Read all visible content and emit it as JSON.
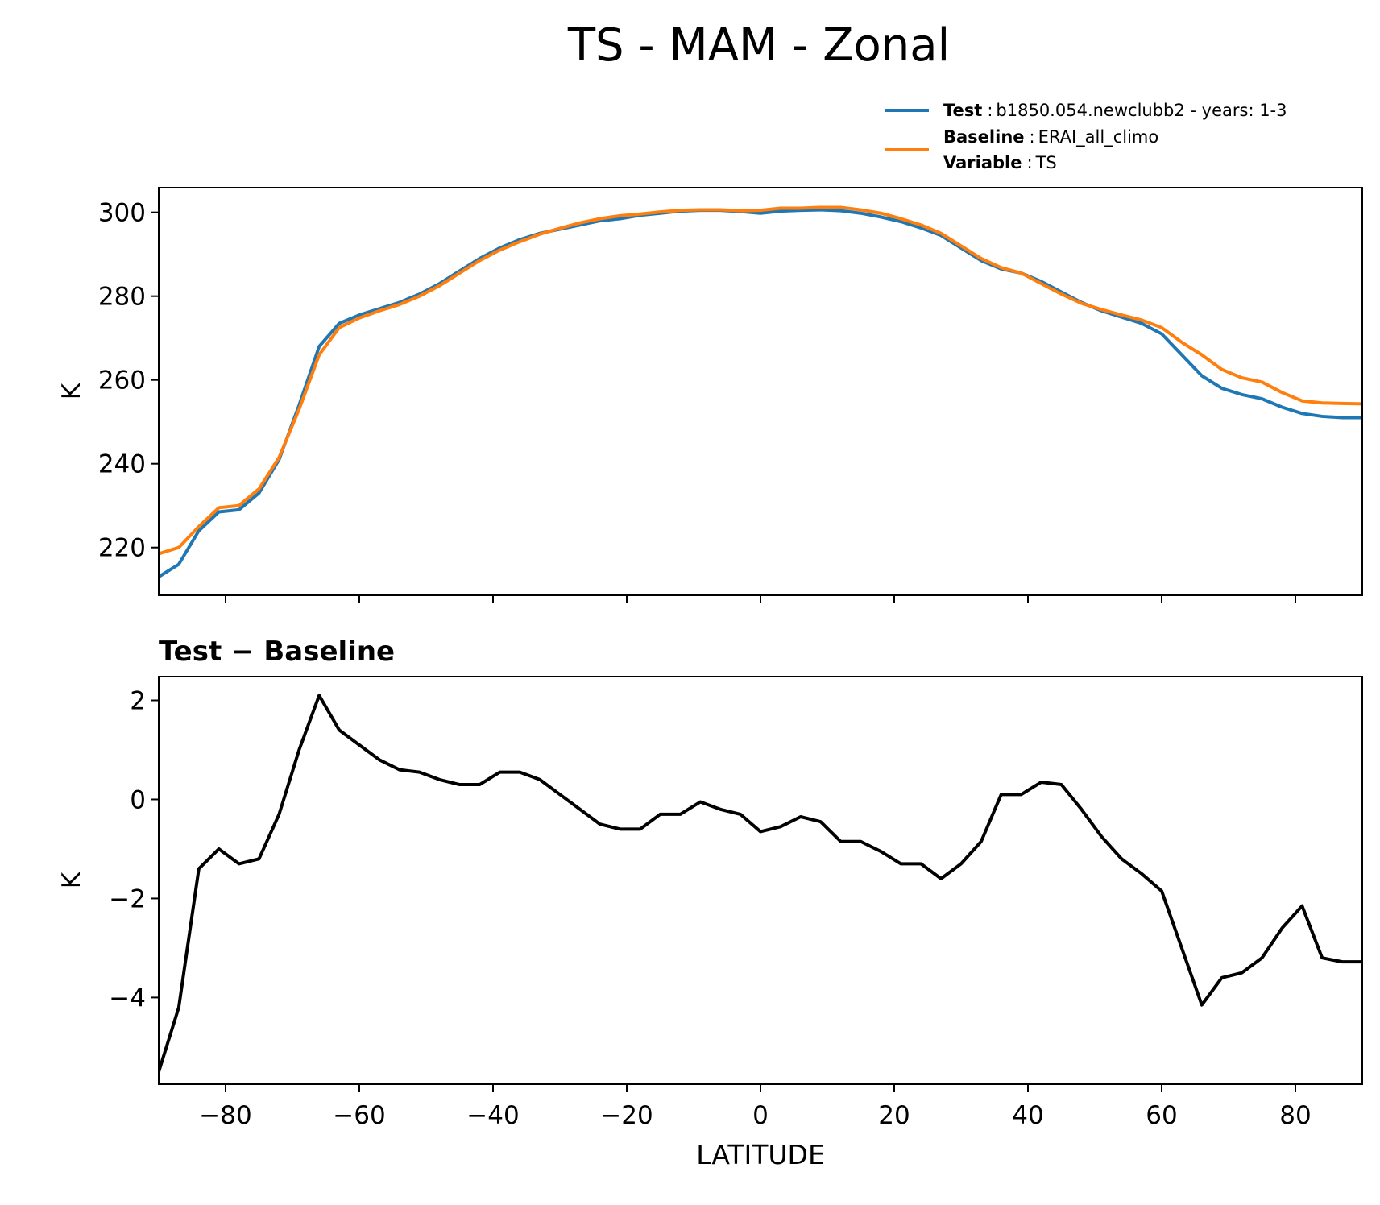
{
  "chart_data": [
    {
      "type": "line",
      "title": "TS - MAM - Zonal",
      "ylabel": "K",
      "x": [
        -90,
        -87,
        -84,
        -81,
        -78,
        -75,
        -72,
        -69,
        -66,
        -63,
        -60,
        -57,
        -54,
        -51,
        -48,
        -45,
        -42,
        -39,
        -36,
        -33,
        -30,
        -27,
        -24,
        -21,
        -18,
        -15,
        -12,
        -9,
        -6,
        -3,
        0,
        3,
        6,
        9,
        12,
        15,
        18,
        21,
        24,
        27,
        30,
        33,
        36,
        39,
        42,
        45,
        48,
        51,
        54,
        57,
        60,
        63,
        66,
        69,
        72,
        75,
        78,
        81,
        84,
        87,
        90
      ],
      "series": [
        {
          "name": "Test",
          "detail": "b1850.054.newclubb2 - years: 1-3",
          "color": "#1f77b4",
          "values": [
            213,
            216,
            224,
            228.5,
            229,
            233,
            241,
            254,
            268,
            273.5,
            275.5,
            277,
            278.5,
            280.5,
            283,
            286,
            289,
            291.5,
            293.5,
            295,
            296,
            297,
            298,
            298.5,
            299.3,
            299.8,
            300.3,
            300.5,
            300.5,
            300.2,
            299.8,
            300.3,
            300.5,
            300.6,
            300.4,
            299.8,
            298.9,
            297.8,
            296.3,
            294.5,
            291.5,
            288.5,
            286.5,
            285.5,
            283.5,
            281,
            278.5,
            276.5,
            275,
            273.5,
            271,
            266,
            261,
            258,
            256.5,
            255.5,
            253.5,
            252,
            251.3,
            251,
            251
          ]
        },
        {
          "name": "Baseline",
          "detail": "ERAI_all_climo",
          "color": "#ff7f0e",
          "values": [
            218.5,
            220,
            225,
            229.5,
            230,
            234,
            241.5,
            253,
            266,
            272.5,
            274.8,
            276.5,
            278,
            280,
            282.5,
            285.5,
            288.5,
            291,
            293,
            294.8,
            296.2,
            297.5,
            298.5,
            299.2,
            299.6,
            300.1,
            300.5,
            300.6,
            300.6,
            300.4,
            300.5,
            301,
            301,
            301.2,
            301.2,
            300.6,
            299.8,
            298.5,
            297,
            295,
            292,
            289,
            286.8,
            285.5,
            283,
            280.5,
            278.3,
            276.8,
            275.5,
            274.3,
            272.5,
            269,
            266,
            262.5,
            260.5,
            259.5,
            257,
            255,
            254.5,
            254.4,
            254.3
          ]
        }
      ],
      "legend_separator": ":",
      "legend_extra": {
        "key": "Variable",
        "value": "TS"
      },
      "xlim": [
        -90,
        90
      ],
      "xticks": [
        -80,
        -60,
        -40,
        -20,
        0,
        20,
        40,
        60,
        80
      ],
      "show_xtick_labels": false,
      "ylim": [
        208.6,
        305.9
      ],
      "yticks": [
        220,
        240,
        260,
        280,
        300
      ]
    },
    {
      "type": "line",
      "title": "Test − Baseline",
      "ylabel": "K",
      "xlabel": "LATITUDE",
      "x": [
        -90,
        -87,
        -84,
        -81,
        -78,
        -75,
        -72,
        -69,
        -66,
        -63,
        -60,
        -57,
        -54,
        -51,
        -48,
        -45,
        -42,
        -39,
        -36,
        -33,
        -30,
        -27,
        -24,
        -21,
        -18,
        -15,
        -12,
        -9,
        -6,
        -3,
        0,
        3,
        6,
        9,
        12,
        15,
        18,
        21,
        24,
        27,
        30,
        33,
        36,
        39,
        42,
        45,
        48,
        51,
        54,
        57,
        60,
        63,
        66,
        69,
        72,
        75,
        78,
        81,
        84,
        87,
        90
      ],
      "series": [
        {
          "color": "#000000",
          "values": [
            -5.5,
            -4.2,
            -1.4,
            -1.0,
            -1.3,
            -1.2,
            -0.3,
            1.0,
            2.1,
            1.4,
            1.1,
            0.8,
            0.6,
            0.55,
            0.4,
            0.3,
            0.3,
            0.55,
            0.55,
            0.4,
            0.1,
            -0.2,
            -0.5,
            -0.6,
            -0.6,
            -0.3,
            -0.3,
            -0.05,
            -0.2,
            -0.3,
            -0.65,
            -0.55,
            -0.35,
            -0.45,
            -0.85,
            -0.85,
            -1.05,
            -1.3,
            -1.3,
            -1.6,
            -1.3,
            -0.85,
            0.1,
            0.1,
            0.35,
            0.3,
            -0.2,
            -0.75,
            -1.2,
            -1.5,
            -1.85,
            -3.0,
            -4.15,
            -3.6,
            -3.5,
            -3.2,
            -2.6,
            -2.15,
            -3.2,
            -3.28,
            -3.28
          ]
        }
      ],
      "xlim": [
        -90,
        90
      ],
      "xticks": [
        {
          "value": -80,
          "label": "−80"
        },
        {
          "value": -60,
          "label": "−60"
        },
        {
          "value": -40,
          "label": "−40"
        },
        {
          "value": -20,
          "label": "−20"
        },
        0,
        20,
        40,
        60,
        80
      ],
      "show_xtick_labels": true,
      "ylim": [
        -5.75,
        2.48
      ],
      "yticks": [
        {
          "value": -4,
          "label": "−4"
        },
        {
          "value": -2,
          "label": "−2"
        },
        0,
        2
      ]
    }
  ]
}
